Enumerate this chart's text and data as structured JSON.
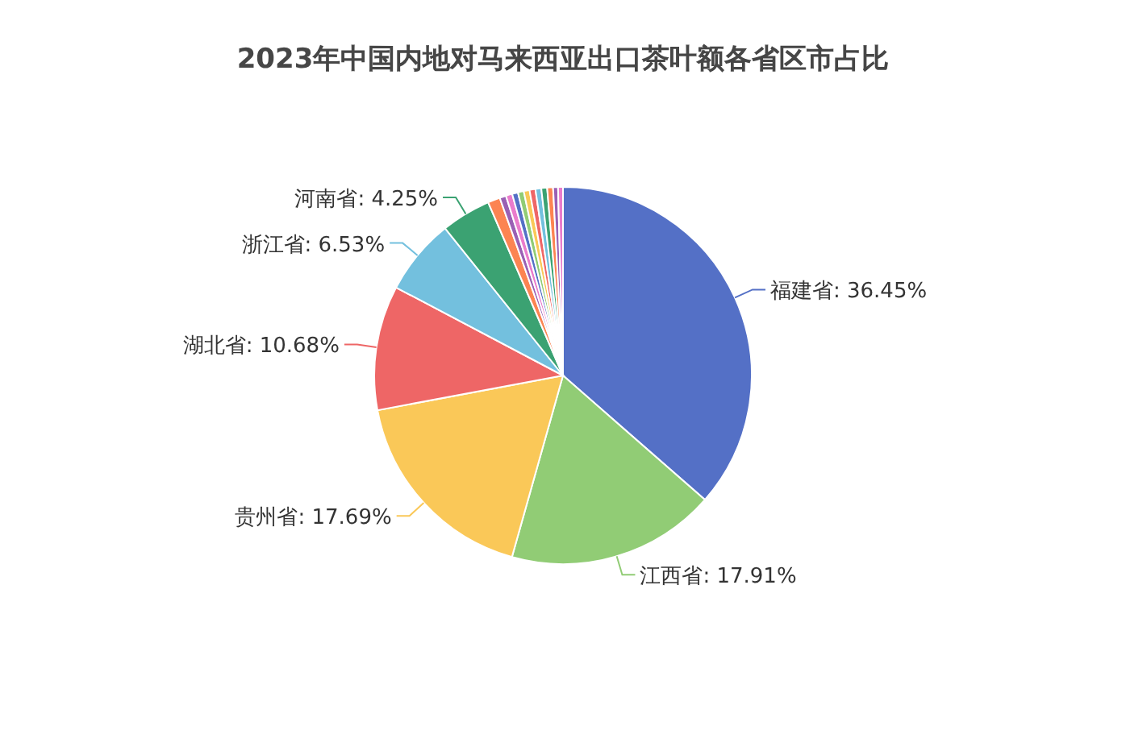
{
  "chart_data": {
    "type": "pie",
    "title": "2023年中国内地对马来西亚出口茶叶额各省区市占比",
    "categories": [
      "福建省",
      "江西省",
      "贵州省",
      "湖北省",
      "浙江省",
      "河南省",
      null,
      null,
      null,
      null,
      null,
      null,
      null,
      null,
      null,
      null,
      null,
      null
    ],
    "values": [
      36.45,
      17.91,
      17.69,
      10.68,
      6.53,
      4.25,
      1.05,
      0.55,
      0.55,
      0.5,
      0.5,
      0.5,
      0.5,
      0.5,
      0.5,
      0.5,
      0.42,
      0.42
    ],
    "colors": [
      "#5470c6",
      "#91cc75",
      "#fac858",
      "#ee6666",
      "#73c0de",
      "#3ba272",
      "#fc8452",
      "#9a60b4",
      "#ea7ccc",
      "#5470c6",
      "#91cc75",
      "#fac858",
      "#ee6666",
      "#73c0de",
      "#3ba272",
      "#fc8452",
      "#9a60b4",
      "#ea7ccc"
    ],
    "value_labels": [
      ": 36.45%",
      ": 17.91%",
      ": 17.69%",
      ": 10.68%",
      ": 6.53%",
      ": 4.25%",
      null,
      null,
      null,
      null,
      null,
      null,
      null,
      null,
      null,
      null,
      null,
      null
    ]
  }
}
